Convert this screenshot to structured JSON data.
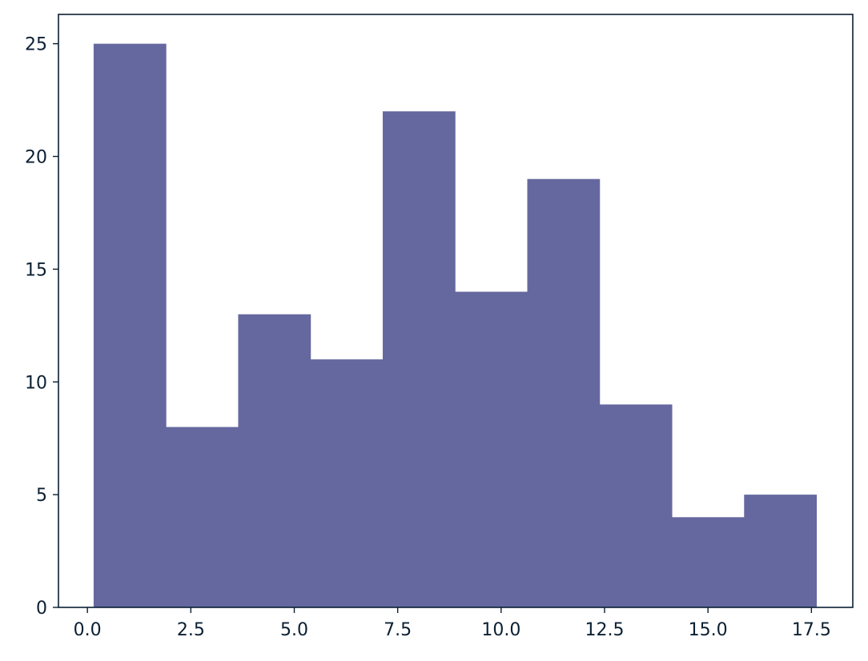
{
  "chart_data": {
    "type": "bar",
    "subtype": "histogram",
    "bin_edges": [
      0.15,
      1.897,
      3.644,
      5.391,
      7.138,
      8.885,
      10.632,
      12.379,
      14.126,
      15.873,
      17.62
    ],
    "values": [
      25,
      8,
      13,
      11,
      22,
      14,
      19,
      9,
      4,
      5
    ],
    "xlim": [
      -0.7,
      18.5
    ],
    "ylim": [
      0,
      26.3
    ],
    "xticks": [
      0.0,
      2.5,
      5.0,
      7.5,
      10.0,
      12.5,
      15.0,
      17.5
    ],
    "xtick_labels": [
      "0.0",
      "2.5",
      "5.0",
      "7.5",
      "10.0",
      "12.5",
      "15.0",
      "17.5"
    ],
    "yticks": [
      0,
      5,
      10,
      15,
      20,
      25
    ],
    "ytick_labels": [
      "0",
      "5",
      "10",
      "15",
      "20",
      "25"
    ],
    "grid": false,
    "bar_color": "#65689f",
    "axis_color": "#0b1f33"
  }
}
